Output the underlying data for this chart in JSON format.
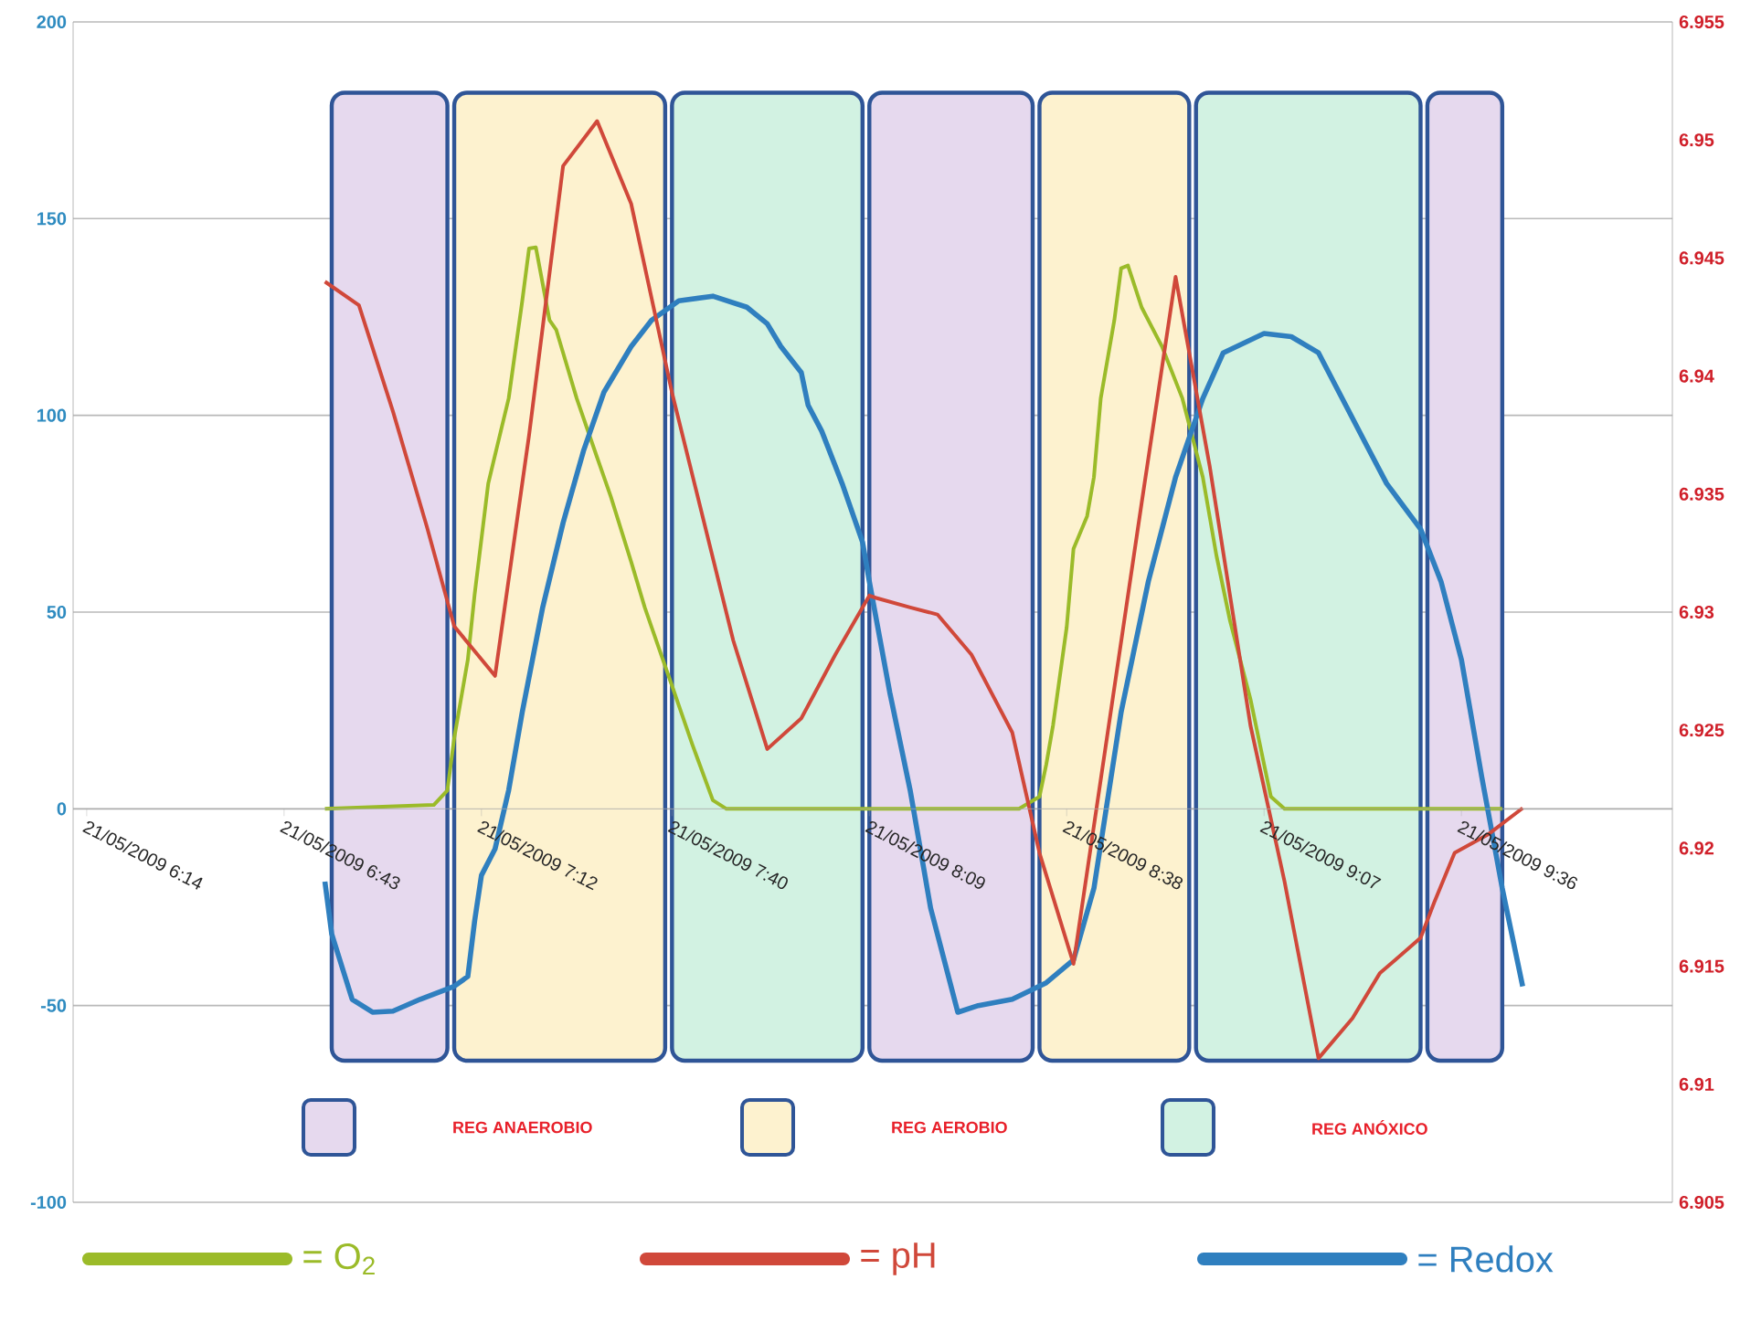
{
  "chart_data": {
    "type": "line",
    "xlim": [
      "2009-05-21T06:12",
      "2009-05-21T10:07"
    ],
    "xticks": [
      {
        "value": "2009-05-21T06:14",
        "label": "21/05/2009 6:14"
      },
      {
        "value": "2009-05-21T06:43",
        "label": "21/05/2009 6:43"
      },
      {
        "value": "2009-05-21T07:12",
        "label": "21/05/2009 7:12"
      },
      {
        "value": "2009-05-21T07:40",
        "label": "21/05/2009 7:40"
      },
      {
        "value": "2009-05-21T08:09",
        "label": "21/05/2009 8:09"
      },
      {
        "value": "2009-05-21T08:38",
        "label": "21/05/2009 8:38"
      },
      {
        "value": "2009-05-21T09:07",
        "label": "21/05/2009 9:07"
      },
      {
        "value": "2009-05-21T09:36",
        "label": "21/05/2009 9:36"
      }
    ],
    "ylim": [
      -100,
      200
    ],
    "yticks": [
      -100,
      -50,
      0,
      50,
      100,
      150,
      200
    ],
    "y2lim": [
      6.905,
      6.955
    ],
    "y2ticks": [
      6.905,
      6.91,
      6.915,
      6.92,
      6.925,
      6.93,
      6.935,
      6.94,
      6.945,
      6.95,
      6.955
    ],
    "grid": "y",
    "legend": "bottom",
    "bands": [
      {
        "axis": "x",
        "from": "2009-05-21T06:50",
        "to": "2009-05-21T07:07",
        "color": "#e6d9ee"
      },
      {
        "axis": "x",
        "from": "2009-05-21T07:08",
        "to": "2009-05-21T07:39",
        "color": "#fdf2cf"
      },
      {
        "axis": "x",
        "from": "2009-05-21T07:40",
        "to": "2009-05-21T08:08",
        "color": "#d2f2e2"
      },
      {
        "axis": "x",
        "from": "2009-05-21T08:09",
        "to": "2009-05-21T08:33",
        "color": "#e6d9ee"
      },
      {
        "axis": "x",
        "from": "2009-05-21T08:34",
        "to": "2009-05-21T08:56",
        "color": "#fdf2cf"
      },
      {
        "axis": "x",
        "from": "2009-05-21T08:57",
        "to": "2009-05-21T09:30",
        "color": "#d2f2e2"
      },
      {
        "axis": "x",
        "from": "2009-05-21T09:31",
        "to": "2009-05-21T09:42",
        "color": "#e6d9ee"
      }
    ],
    "annotations": [
      "REG ANAEROBIO",
      "REG AEROBIO",
      "REG ANÓXICO"
    ],
    "series": [
      {
        "name": "= O$_{2}$",
        "color": "#9bbb29",
        "x": [
          "2009-05-21T06:49",
          "2009-05-21T07:05",
          "2009-05-21T07:07",
          "2009-05-21T07:08",
          "2009-05-21T07:10",
          "2009-05-21T07:11",
          "2009-05-21T07:13",
          "2009-05-21T07:16",
          "2009-05-21T07:18",
          "2009-05-21T07:19",
          "2009-05-21T07:20",
          "2009-05-21T07:22",
          "2009-05-21T07:23",
          "2009-05-21T07:26",
          "2009-05-21T07:29",
          "2009-05-21T07:31",
          "2009-05-21T07:34",
          "2009-05-21T07:36",
          "2009-05-21T07:38",
          "2009-05-21T07:40",
          "2009-05-21T07:43",
          "2009-05-21T07:46",
          "2009-05-21T07:48",
          "2009-05-21T08:31",
          "2009-05-21T08:34",
          "2009-05-21T08:35",
          "2009-05-21T08:36",
          "2009-05-21T08:38",
          "2009-05-21T08:39",
          "2009-05-21T08:41",
          "2009-05-21T08:42",
          "2009-05-21T08:43",
          "2009-05-21T08:45",
          "2009-05-21T08:46",
          "2009-05-21T08:47",
          "2009-05-21T08:49",
          "2009-05-21T08:52",
          "2009-05-21T08:55",
          "2009-05-21T08:58",
          "2009-05-21T09:00",
          "2009-05-21T09:02",
          "2009-05-21T09:05",
          "2009-05-21T09:07",
          "2009-05-21T09:08",
          "2009-05-21T09:10",
          "2009-05-21T09:42"
        ],
        "values": [
          0,
          1,
          4.7,
          18,
          37.9,
          54.5,
          82.7,
          104.3,
          129.1,
          142.4,
          142.7,
          124.2,
          121.7,
          104.3,
          89.3,
          79.4,
          62.8,
          51.2,
          41.2,
          31.3,
          16.3,
          2.2,
          0,
          0,
          3.1,
          11.3,
          21.3,
          46.2,
          66.1,
          74.4,
          84.3,
          104.3,
          124.2,
          137.4,
          138.1,
          127.5,
          117.5,
          104.3,
          84.3,
          64.4,
          47.8,
          27.9,
          11.3,
          3.1,
          0,
          0
        ]
      },
      {
        "name": "= pH",
        "color": "#d0483a",
        "axis": "y2",
        "x": [
          "2009-05-21T06:49",
          "2009-05-21T06:54",
          "2009-05-21T06:59",
          "2009-05-21T07:04",
          "2009-05-21T07:08",
          "2009-05-21T07:14",
          "2009-05-21T07:19",
          "2009-05-21T07:24",
          "2009-05-21T07:29",
          "2009-05-21T07:34",
          "2009-05-21T07:40",
          "2009-05-21T07:49",
          "2009-05-21T07:54",
          "2009-05-21T07:59",
          "2009-05-21T08:04",
          "2009-05-21T08:09",
          "2009-05-21T08:10",
          "2009-05-21T08:15",
          "2009-05-21T08:19",
          "2009-05-21T08:24",
          "2009-05-21T08:30",
          "2009-05-21T08:34",
          "2009-05-21T08:39",
          "2009-05-21T08:49",
          "2009-05-21T08:54",
          "2009-05-21T08:59",
          "2009-05-21T09:05",
          "2009-05-21T09:10",
          "2009-05-21T09:15",
          "2009-05-21T09:20",
          "2009-05-21T09:24",
          "2009-05-21T09:30",
          "2009-05-21T09:32",
          "2009-05-21T09:35",
          "2009-05-21T09:40",
          "2009-05-21T09:45"
        ],
        "values": [
          6.944,
          6.943,
          6.9385,
          6.9336,
          6.9294,
          6.9273,
          6.9375,
          6.9489,
          6.9508,
          6.9473,
          6.9393,
          6.9288,
          6.9242,
          6.9255,
          6.9282,
          6.9307,
          6.9306,
          6.9302,
          6.9299,
          6.9282,
          6.9249,
          6.9198,
          6.9151,
          6.9346,
          6.9442,
          6.9362,
          6.9252,
          6.9186,
          6.9111,
          6.9128,
          6.9147,
          6.9162,
          6.9177,
          6.9198,
          6.9206,
          6.9217
        ]
      },
      {
        "name": "= Redox",
        "color": "#2f7fbf",
        "x": [
          "2009-05-21T06:49",
          "2009-05-21T06:50",
          "2009-05-21T06:53",
          "2009-05-21T06:56",
          "2009-05-21T06:59",
          "2009-05-21T07:03",
          "2009-05-21T07:08",
          "2009-05-21T07:10",
          "2009-05-21T07:11",
          "2009-05-21T07:12",
          "2009-05-21T07:14",
          "2009-05-21T07:16",
          "2009-05-21T07:18",
          "2009-05-21T07:21",
          "2009-05-21T07:24",
          "2009-05-21T07:27",
          "2009-05-21T07:30",
          "2009-05-21T07:34",
          "2009-05-21T07:37",
          "2009-05-21T07:41",
          "2009-05-21T07:46",
          "2009-05-21T07:51",
          "2009-05-21T07:54",
          "2009-05-21T07:56",
          "2009-05-21T07:59",
          "2009-05-21T08:00",
          "2009-05-21T08:02",
          "2009-05-21T08:05",
          "2009-05-21T08:08",
          "2009-05-21T08:09",
          "2009-05-21T08:12",
          "2009-05-21T08:15",
          "2009-05-21T08:18",
          "2009-05-21T08:22",
          "2009-05-21T08:25",
          "2009-05-21T08:30",
          "2009-05-21T08:35",
          "2009-05-21T08:39",
          "2009-05-21T08:42",
          "2009-05-21T08:46",
          "2009-05-21T08:50",
          "2009-05-21T08:54",
          "2009-05-21T08:58",
          "2009-05-21T09:01",
          "2009-05-21T09:07",
          "2009-05-21T09:11",
          "2009-05-21T09:15",
          "2009-05-21T09:19",
          "2009-05-21T09:22",
          "2009-05-21T09:25",
          "2009-05-21T09:30",
          "2009-05-21T09:33",
          "2009-05-21T09:36",
          "2009-05-21T09:39",
          "2009-05-21T09:42",
          "2009-05-21T09:45"
        ],
        "values": [
          -18.5,
          -31.8,
          -48.4,
          -51.7,
          -51.4,
          -48.4,
          -45.1,
          -42.6,
          -28.5,
          -16.9,
          -10.2,
          4.7,
          24.6,
          51.2,
          72.7,
          91,
          105.9,
          117.5,
          124.2,
          129.1,
          130.3,
          127.5,
          123.3,
          117.5,
          110.9,
          102.6,
          96,
          82.7,
          67.8,
          57.8,
          29.6,
          4.7,
          -25.2,
          -51.7,
          -50,
          -48.4,
          -44.2,
          -38.4,
          -20.2,
          24.6,
          57.8,
          84.3,
          104.3,
          115.9,
          120.8,
          120,
          115.9,
          102.6,
          92.6,
          82.7,
          71.1,
          57.8,
          37.9,
          8,
          -20.2,
          -45.1
        ]
      }
    ]
  }
}
